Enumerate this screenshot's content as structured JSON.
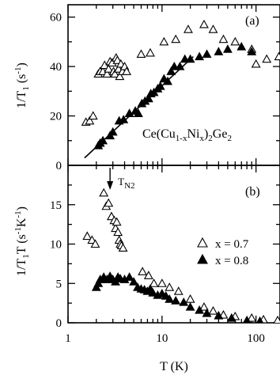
{
  "chart_data": [
    {
      "panel": "(a)",
      "type": "scatter",
      "x_scale": "log",
      "xlim": [
        1,
        180
      ],
      "ylim": [
        0,
        65
      ],
      "x_ticks": [
        1,
        10,
        100
      ],
      "y_ticks": [
        0,
        20,
        40,
        60
      ],
      "xlabel": "",
      "ylabel_main": "1/T",
      "ylabel_sub": "1",
      "ylabel_unit": "(s",
      "ylabel_unit_sup": "-1",
      "ylabel_unit_end": ")",
      "annotation": {
        "prefix": "Ce(Cu",
        "sub1": "1-x",
        "mid": "Ni",
        "sub2": "x",
        "mid2": ")",
        "sub3": "2",
        "suffix": "Ge",
        "sub4": "2"
      },
      "series": [
        {
          "name": "x = 0.7",
          "marker": "open-triangle",
          "points": [
            [
              1.55,
              17.5
            ],
            [
              1.7,
              18
            ],
            [
              1.85,
              20
            ],
            [
              2.1,
              37
            ],
            [
              2.2,
              38
            ],
            [
              2.35,
              38
            ],
            [
              2.45,
              40.5
            ],
            [
              2.6,
              37
            ],
            [
              2.7,
              39
            ],
            [
              2.8,
              42
            ],
            [
              2.95,
              41.5
            ],
            [
              3.05,
              38
            ],
            [
              3.15,
              37
            ],
            [
              3.25,
              43.5
            ],
            [
              3.35,
              42.5
            ],
            [
              3.45,
              39
            ],
            [
              3.55,
              36
            ],
            [
              3.65,
              41
            ],
            [
              3.8,
              38
            ],
            [
              4.0,
              40
            ],
            [
              4.2,
              38
            ],
            [
              6.0,
              45
            ],
            [
              7.5,
              45.5
            ],
            [
              10.5,
              50
            ],
            [
              14,
              51
            ],
            [
              19,
              55
            ],
            [
              28,
              57
            ],
            [
              35,
              55
            ],
            [
              45,
              51
            ],
            [
              60,
              50
            ],
            [
              90,
              47
            ],
            [
              100,
              41
            ],
            [
              130,
              43
            ],
            [
              175,
              44
            ]
          ]
        },
        {
          "name": "x = 0.8",
          "marker": "filled-triangle",
          "points": [
            [
              2.1,
              8
            ],
            [
              2.2,
              9
            ],
            [
              2.35,
              10
            ],
            [
              2.8,
              12
            ],
            [
              3.0,
              13.5
            ],
            [
              3.5,
              18
            ],
            [
              3.9,
              18.5
            ],
            [
              4.5,
              21
            ],
            [
              5.2,
              22
            ],
            [
              5.6,
              21
            ],
            [
              6.1,
              25
            ],
            [
              6.6,
              26
            ],
            [
              7.2,
              27
            ],
            [
              7.6,
              29
            ],
            [
              8.2,
              29.5
            ],
            [
              9.0,
              31
            ],
            [
              9.6,
              32
            ],
            [
              10.5,
              35
            ],
            [
              11.5,
              34
            ],
            [
              12.5,
              38
            ],
            [
              13.5,
              40
            ],
            [
              15.5,
              40
            ],
            [
              17.5,
              43
            ],
            [
              20,
              43
            ],
            [
              25,
              44
            ],
            [
              30,
              45
            ],
            [
              40,
              46
            ],
            [
              50,
              47
            ],
            [
              70,
              48
            ],
            [
              90,
              46
            ]
          ]
        }
      ],
      "fit_line": {
        "x": [
          1.5,
          21.5
        ],
        "y": [
          3,
          44
        ]
      }
    },
    {
      "panel": "(b)",
      "type": "scatter",
      "x_scale": "log",
      "xlim": [
        1,
        180
      ],
      "ylim": [
        0,
        20
      ],
      "x_ticks": [
        1,
        10,
        100
      ],
      "y_ticks": [
        0,
        5,
        10,
        15
      ],
      "xlabel": "T  (K)",
      "ylabel_main": "1/T",
      "ylabel_sub": "1",
      "ylabel_mid": "T",
      "ylabel_unit": "(s",
      "ylabel_unit_sup": "-1",
      "ylabel_unit_mid": "K",
      "ylabel_unit_sup2": "-1",
      "ylabel_unit_end": ")",
      "arrow_label": {
        "main": "T",
        "sub": "N2"
      },
      "arrow_x": 2.8,
      "legend_placement": "right",
      "series": [
        {
          "name": "x = 0.7",
          "marker": "open-triangle",
          "points": [
            [
              1.6,
              11
            ],
            [
              1.8,
              10.5
            ],
            [
              1.95,
              10
            ],
            [
              2.4,
              16.5
            ],
            [
              2.55,
              14.8
            ],
            [
              2.7,
              15.2
            ],
            [
              2.9,
              13.5
            ],
            [
              3.1,
              13
            ],
            [
              3.2,
              12
            ],
            [
              3.3,
              12.8
            ],
            [
              3.4,
              11.5
            ],
            [
              3.5,
              10.5
            ],
            [
              3.6,
              10
            ],
            [
              3.7,
              9.8
            ],
            [
              3.85,
              9.5
            ],
            [
              6.2,
              6.5
            ],
            [
              7.2,
              6
            ],
            [
              8.2,
              5
            ],
            [
              10,
              5
            ],
            [
              12,
              4.5
            ],
            [
              15,
              4
            ],
            [
              20,
              3
            ],
            [
              28,
              2
            ],
            [
              35,
              1.5
            ],
            [
              45,
              1
            ],
            [
              60,
              0.8
            ],
            [
              90,
              0.6
            ],
            [
              120,
              0.4
            ],
            [
              170,
              0.3
            ]
          ]
        },
        {
          "name": "x = 0.8",
          "marker": "filled-triangle",
          "points": [
            [
              2.0,
              4.5
            ],
            [
              2.1,
              5
            ],
            [
              2.2,
              5.5
            ],
            [
              2.4,
              5.8
            ],
            [
              2.6,
              5.5
            ],
            [
              2.8,
              5.9
            ],
            [
              3.0,
              5.5
            ],
            [
              3.2,
              5.2
            ],
            [
              3.4,
              5.8
            ],
            [
              3.6,
              5.6
            ],
            [
              4.0,
              5.5
            ],
            [
              4.5,
              5.8
            ],
            [
              5.0,
              5.2
            ],
            [
              5.5,
              4.5
            ],
            [
              6.0,
              4.3
            ],
            [
              6.5,
              4.2
            ],
            [
              7.0,
              4
            ],
            [
              7.5,
              4.3
            ],
            [
              8.0,
              3.8
            ],
            [
              9.0,
              3.5
            ],
            [
              10,
              3.7
            ],
            [
              11,
              3.4
            ],
            [
              12,
              3
            ],
            [
              14,
              2.8
            ],
            [
              17,
              2.6
            ],
            [
              20,
              2
            ],
            [
              25,
              1.6
            ],
            [
              30,
              1.2
            ],
            [
              40,
              0.9
            ],
            [
              55,
              0.6
            ],
            [
              80,
              0.3
            ],
            [
              110,
              0.2
            ]
          ]
        }
      ]
    }
  ]
}
